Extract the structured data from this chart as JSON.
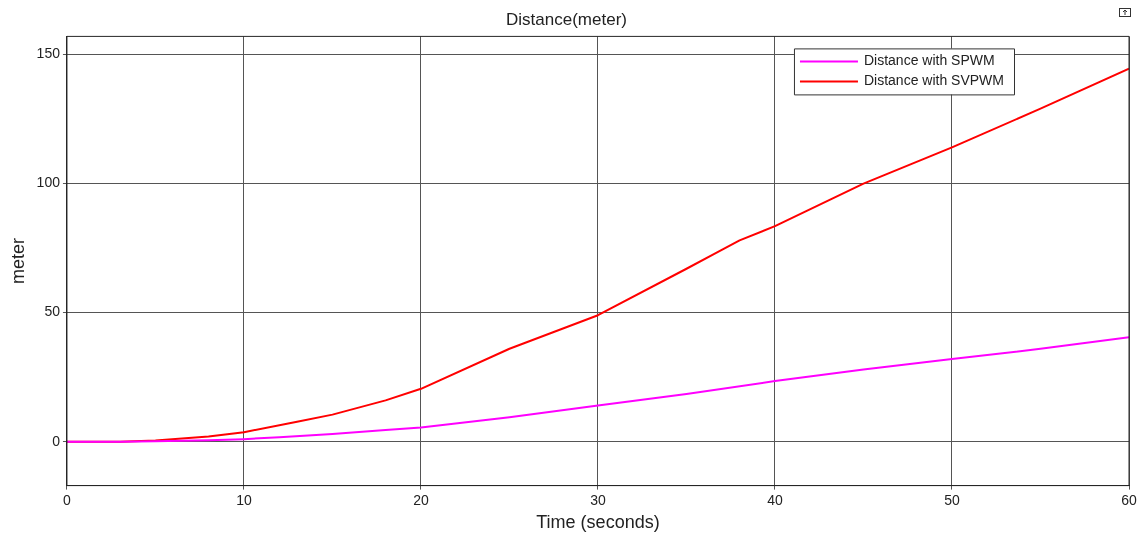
{
  "chart_data": {
    "type": "line",
    "title": "Distance(meter)",
    "xlabel": "Time (seconds)",
    "ylabel": "meter",
    "xlim": [
      0,
      60
    ],
    "xticks": [
      0,
      10,
      20,
      30,
      40,
      50,
      60
    ],
    "ylim": [
      -17,
      157
    ],
    "yticks": [
      0,
      50,
      100,
      150
    ],
    "grid": true,
    "legend": "top right",
    "marker": "none",
    "line_style": "solid",
    "series": [
      {
        "name": "Distance with SPWM",
        "color": "#ff00ff",
        "x": [
          0,
          3,
          5,
          8,
          10,
          12,
          15,
          18,
          20,
          25,
          30,
          35,
          40,
          45,
          50,
          55,
          60
        ],
        "values": [
          0,
          0,
          0.2,
          0.6,
          1,
          1.7,
          3,
          4.5,
          5.5,
          9.5,
          14,
          18.5,
          23.5,
          28,
          32,
          36,
          40.5
        ]
      },
      {
        "name": "Distance with SVPWM",
        "color": "#ff0000",
        "x": [
          0,
          3,
          5,
          8,
          10,
          13,
          15,
          18,
          20,
          25,
          30,
          35,
          38,
          40,
          45,
          50,
          55,
          60
        ],
        "values": [
          0,
          0,
          0.5,
          2,
          3.7,
          7.7,
          10.5,
          16,
          20.5,
          36,
          49,
          67,
          78,
          83.5,
          100,
          114,
          129,
          144.5
        ]
      }
    ]
  }
}
